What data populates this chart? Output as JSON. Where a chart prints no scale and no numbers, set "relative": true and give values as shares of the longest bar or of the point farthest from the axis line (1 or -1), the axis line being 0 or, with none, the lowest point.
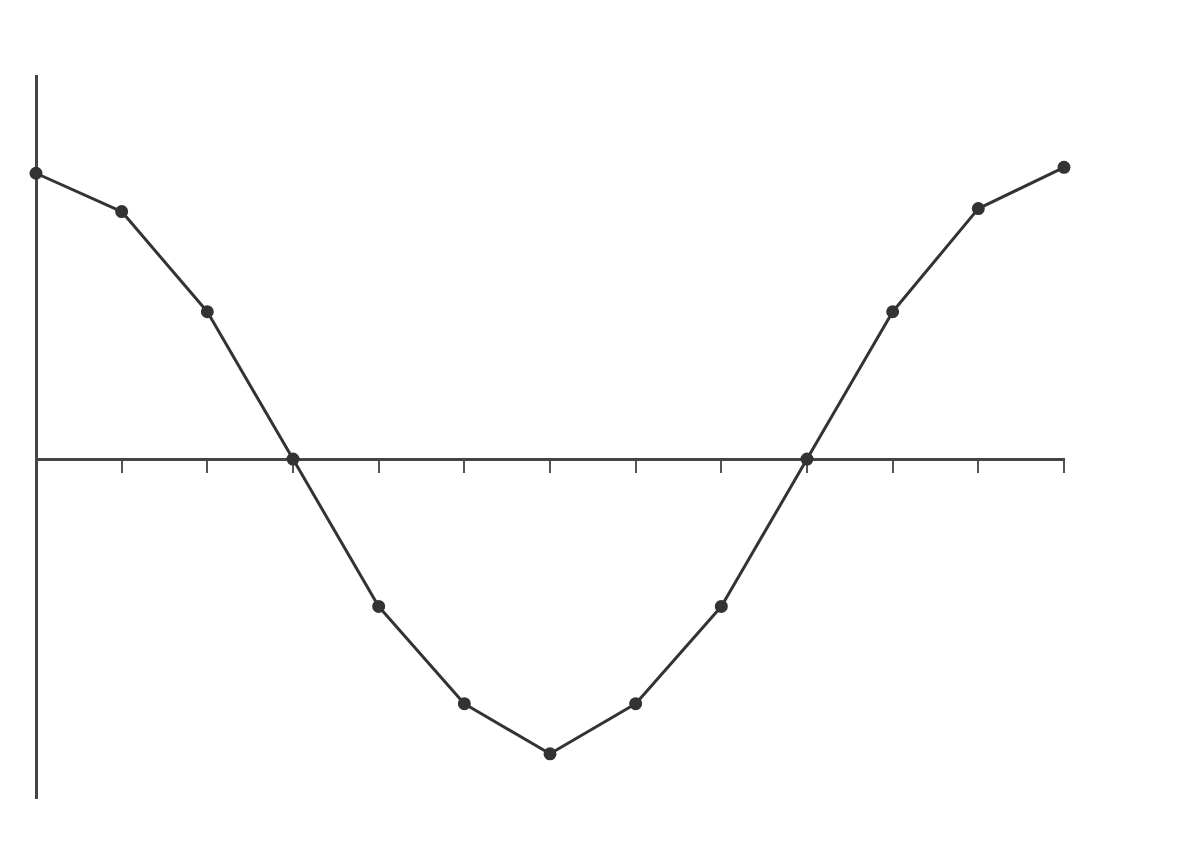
{
  "chart_data": {
    "type": "line",
    "relative": true,
    "categories": [
      null,
      null,
      null,
      null,
      null,
      null,
      null,
      null,
      null,
      null,
      null,
      null,
      null
    ],
    "series": [
      {
        "color": "#333333",
        "values": [
          0.97,
          0.84,
          0.5,
          0,
          -0.5,
          -0.83,
          -1,
          -0.83,
          -0.5,
          0,
          0.5,
          0.85,
          0.99
        ]
      }
    ],
    "marker": "circle",
    "line_style": "solid",
    "grid": false,
    "legend": false
  }
}
